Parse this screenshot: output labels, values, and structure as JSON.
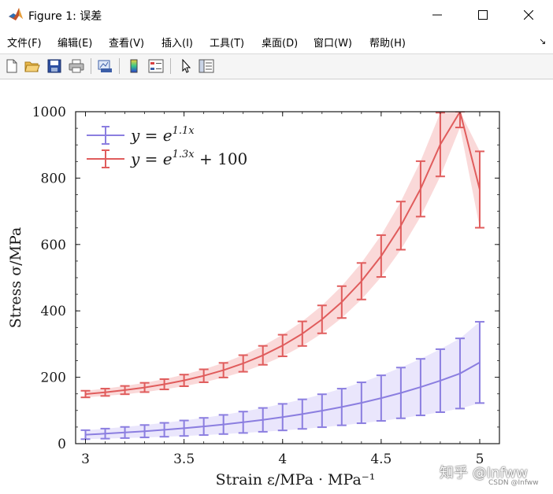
{
  "window": {
    "title": "Figure 1: 误差",
    "controls": {
      "minimize": "—",
      "maximize": "☐",
      "close": "✕"
    }
  },
  "menu": {
    "items": [
      "文件(F)",
      "编辑(E)",
      "查看(V)",
      "插入(I)",
      "工具(T)",
      "桌面(D)",
      "窗口(W)",
      "帮助(H)"
    ],
    "overflow_icon": "corner-arrow-icon"
  },
  "toolbar": {
    "buttons": [
      "new-figure-icon",
      "open-file-icon",
      "save-icon",
      "print-icon",
      "link-plot-icon",
      "insert-colorbar-icon",
      "insert-legend-icon",
      "pointer-icon",
      "property-inspector-icon"
    ]
  },
  "watermark": {
    "text": "知乎 @Infww",
    "sub": "CSDN @Infww"
  },
  "colors": {
    "series1": "#8b7ee0",
    "series2": "#e05c5c",
    "band1": "#e6e2fb",
    "band2": "#f9d2d2"
  },
  "chart_data": {
    "type": "line",
    "title": "",
    "xlabel": "Strain  ε/MPa · MPa⁻¹",
    "ylabel": "Stress  σ/MPa",
    "xlim": [
      2.95,
      5.1
    ],
    "ylim": [
      0,
      1000
    ],
    "xticks": [
      "3",
      "3.5",
      "4",
      "4.5",
      "5"
    ],
    "yticks": [
      "0",
      "200",
      "400",
      "600",
      "800",
      "1000"
    ],
    "grid": false,
    "legend_position": "top-left",
    "x": [
      3.0,
      3.1,
      3.2,
      3.3,
      3.4,
      3.5,
      3.6,
      3.7,
      3.8,
      3.9,
      4.0,
      4.1,
      4.2,
      4.3,
      4.4,
      4.5,
      4.6,
      4.7,
      4.8,
      4.9,
      5.0
    ],
    "series": [
      {
        "name": "y = e^{1.1x}",
        "legend_base": "y = e",
        "legend_sup": "1.1x",
        "legend_tail": "",
        "color": "#8b7ee0",
        "y": [
          27.1,
          30.2,
          33.6,
          37.5,
          41.8,
          46.5,
          51.8,
          57.8,
          64.4,
          71.7,
          79.9,
          89.0,
          99.2,
          110.5,
          123.1,
          137.2,
          152.8,
          170.3,
          189.7,
          211.4,
          244.7
        ],
        "err": [
          13.5,
          15.1,
          16.8,
          18.7,
          20.9,
          23.3,
          25.9,
          28.9,
          32.2,
          35.9,
          40.0,
          44.5,
          49.6,
          55.2,
          61.6,
          68.6,
          76.4,
          85.1,
          94.9,
          105.7,
          122.4
        ]
      },
      {
        "name": "y = e^{1.3x} + 100",
        "legend_base": "y = e",
        "legend_sup": "1.3x",
        "legend_tail": " + 100",
        "color": "#e05c5c",
        "y": [
          149.4,
          154.8,
          161.4,
          169.3,
          178.9,
          190.5,
          204.4,
          221.3,
          241.6,
          266.1,
          295.6,
          331.3,
          374.4,
          426.5,
          489.3,
          565.2,
          656.8,
          767.5,
          901.1,
          1062.5,
          765.5
        ],
        "err": [
          10.0,
          11.0,
          12.5,
          14.0,
          15.5,
          17.5,
          19.5,
          22.0,
          25.0,
          28.5,
          32.5,
          37.0,
          42.0,
          48.0,
          55.0,
          63.0,
          72.5,
          83.5,
          96.0,
          110.0,
          115.0
        ]
      }
    ]
  }
}
